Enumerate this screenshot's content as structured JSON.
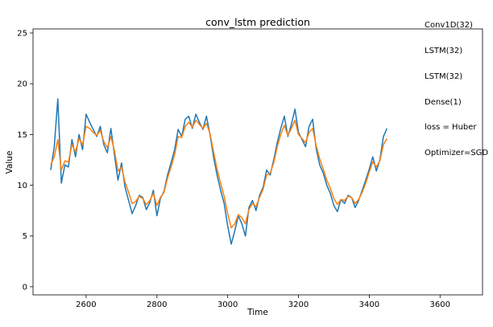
{
  "chart_data": {
    "type": "line",
    "title": "conv_lstm prediction",
    "xlabel": "Time",
    "ylabel": "Value",
    "xlim": [
      2450,
      3720
    ],
    "ylim": [
      -0.8,
      25.4
    ],
    "xticks": [
      2600,
      2800,
      3000,
      3200,
      3400,
      3600
    ],
    "yticks": [
      0,
      5,
      10,
      15,
      20,
      25
    ],
    "grid": false,
    "annotation_lines": [
      "Conv1D(32)",
      "LSTM(32)",
      "LSTM(32)",
      "Dense(1)",
      "loss = Huber",
      "Optimizer=SGD"
    ],
    "series": [
      {
        "color": "#1f77b4",
        "x_start": 2500,
        "x_step": 10,
        "values": [
          11.5,
          13.8,
          18.5,
          10.2,
          12.0,
          11.8,
          14.5,
          12.8,
          15.0,
          13.5,
          17.0,
          16.2,
          15.5,
          14.8,
          15.8,
          14.0,
          13.2,
          15.6,
          13.0,
          10.5,
          12.2,
          9.8,
          8.5,
          7.2,
          8.0,
          9.0,
          8.8,
          7.6,
          8.3,
          9.5,
          7.0,
          8.7,
          9.4,
          11.0,
          12.2,
          13.5,
          15.5,
          14.8,
          16.5,
          16.8,
          15.6,
          17.0,
          16.2,
          15.5,
          16.8,
          15.0,
          12.8,
          11.0,
          9.5,
          8.2,
          6.0,
          4.2,
          5.5,
          7.0,
          6.2,
          5.0,
          7.8,
          8.5,
          7.5,
          9.0,
          9.8,
          11.5,
          11.0,
          12.5,
          14.2,
          15.6,
          16.8,
          14.8,
          16.0,
          17.5,
          15.2,
          14.5,
          13.8,
          15.8,
          16.5,
          13.6,
          12.0,
          11.2,
          10.0,
          9.2,
          8.0,
          7.4,
          8.6,
          8.2,
          9.0,
          8.8,
          7.8,
          8.5,
          9.5,
          10.5,
          11.6,
          12.8,
          11.4,
          12.5,
          14.8,
          15.6
        ]
      },
      {
        "color": "#ff7f0e",
        "x_start": 2500,
        "x_step": 10,
        "values": [
          12.0,
          12.8,
          14.5,
          11.5,
          12.4,
          12.3,
          14.0,
          13.3,
          14.6,
          14.0,
          15.8,
          15.6,
          15.2,
          14.9,
          15.4,
          14.3,
          13.7,
          14.8,
          13.4,
          11.4,
          11.8,
          10.3,
          9.3,
          8.2,
          8.4,
          8.9,
          8.7,
          8.1,
          8.5,
          9.2,
          8.0,
          8.8,
          9.3,
          10.7,
          11.8,
          13.0,
          14.8,
          14.7,
          15.8,
          16.2,
          15.7,
          16.4,
          16.0,
          15.6,
          16.1,
          15.1,
          13.3,
          11.6,
          10.2,
          8.9,
          7.2,
          5.8,
          6.2,
          7.1,
          6.8,
          6.2,
          7.6,
          8.2,
          7.9,
          8.8,
          9.6,
          11.0,
          11.2,
          12.2,
          13.8,
          15.0,
          15.9,
          14.9,
          15.6,
          16.4,
          15.0,
          14.6,
          14.2,
          15.2,
          15.6,
          13.9,
          12.6,
          11.6,
          10.5,
          9.7,
          8.7,
          8.1,
          8.6,
          8.5,
          8.9,
          8.8,
          8.2,
          8.6,
          9.3,
          10.2,
          11.3,
          12.3,
          11.8,
          12.4,
          14.0,
          14.6
        ]
      }
    ]
  }
}
